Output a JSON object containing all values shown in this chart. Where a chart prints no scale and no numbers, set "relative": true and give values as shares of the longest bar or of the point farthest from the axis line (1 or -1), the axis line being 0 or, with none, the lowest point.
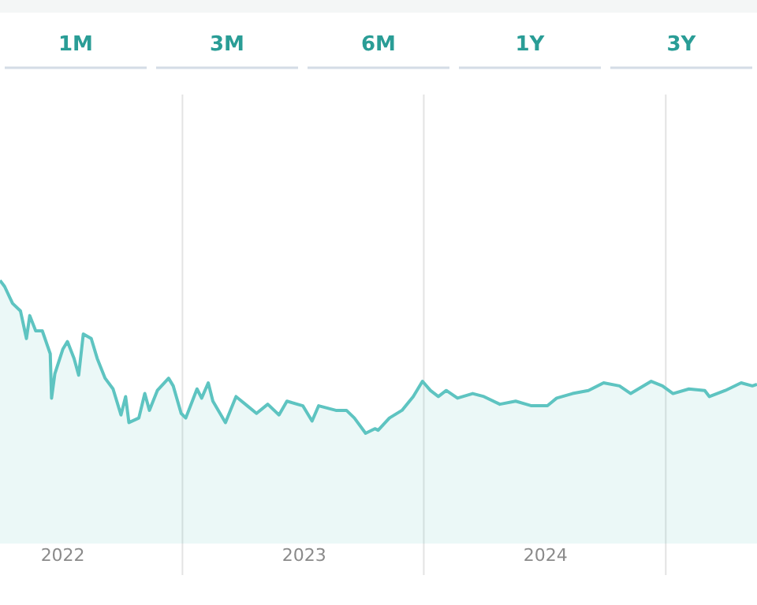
{
  "chart_data": {
    "type": "area",
    "relative": true,
    "color": "#5ec4c1",
    "grid": "x",
    "tick_labels": "x",
    "annotations": [
      "1M",
      "3M",
      "6M",
      "1Y",
      "3Y"
    ],
    "xlim": [
      "2021-09-28",
      "2024-11-16"
    ],
    "xticks": [
      {
        "value": "2022-01-01",
        "label": "2022"
      },
      {
        "value": "2022-07-01",
        "label": null
      },
      {
        "value": "2023-01-01",
        "label": "2023"
      },
      {
        "value": "2023-07-01",
        "label": null
      },
      {
        "value": "2024-01-01",
        "label": "2024"
      },
      {
        "value": "2024-07-01",
        "label": null
      }
    ],
    "x": [
      "2021-09-28",
      "2021-10-05",
      "2021-10-17",
      "2021-10-29",
      "2021-11-07",
      "2021-11-12",
      "2021-11-21",
      "2021-12-01",
      "2021-12-13",
      "2021-12-15",
      "2021-12-20",
      "2022-01-01",
      "2022-01-08",
      "2022-01-18",
      "2022-01-25",
      "2022-02-01",
      "2022-02-13",
      "2022-02-22",
      "2022-03-06",
      "2022-03-18",
      "2022-03-30",
      "2022-04-06",
      "2022-04-11",
      "2022-04-26",
      "2022-05-05",
      "2022-05-12",
      "2022-05-24",
      "2022-06-10",
      "2022-06-17",
      "2022-06-29",
      "2022-07-06",
      "2022-07-23",
      "2022-07-30",
      "2022-08-09",
      "2022-08-16",
      "2022-09-04",
      "2022-09-20",
      "2022-10-07",
      "2022-10-21",
      "2022-11-07",
      "2022-11-24",
      "2022-12-06",
      "2022-12-30",
      "2023-01-13",
      "2023-01-23",
      "2023-02-18",
      "2023-03-06",
      "2023-03-18",
      "2023-04-04",
      "2023-04-18",
      "2023-04-23",
      "2023-05-10",
      "2023-05-29",
      "2023-06-15",
      "2023-06-29",
      "2023-07-11",
      "2023-07-23",
      "2023-08-04",
      "2023-08-21",
      "2023-09-13",
      "2023-09-30",
      "2023-10-24",
      "2023-11-17",
      "2023-12-11",
      "2024-01-04",
      "2024-01-18",
      "2024-02-11",
      "2024-03-06",
      "2024-03-29",
      "2024-04-22",
      "2024-05-09",
      "2024-06-09",
      "2024-06-26",
      "2024-07-12",
      "2024-08-05",
      "2024-08-29",
      "2024-09-05",
      "2024-09-29",
      "2024-10-23",
      "2024-11-09",
      "2024-11-16"
    ],
    "values": [
      1.0,
      0.96,
      0.85,
      0.8,
      0.62,
      0.77,
      0.67,
      0.67,
      0.52,
      0.23,
      0.39,
      0.55,
      0.6,
      0.49,
      0.38,
      0.65,
      0.62,
      0.49,
      0.36,
      0.29,
      0.12,
      0.24,
      0.07,
      0.1,
      0.26,
      0.15,
      0.28,
      0.36,
      0.31,
      0.13,
      0.1,
      0.29,
      0.23,
      0.33,
      0.21,
      0.07,
      0.24,
      0.18,
      0.13,
      0.19,
      0.12,
      0.21,
      0.18,
      0.08,
      0.18,
      0.15,
      0.15,
      0.1,
      0.0,
      0.03,
      0.02,
      0.1,
      0.15,
      0.24,
      0.34,
      0.28,
      0.24,
      0.28,
      0.23,
      0.26,
      0.24,
      0.19,
      0.21,
      0.18,
      0.18,
      0.23,
      0.26,
      0.28,
      0.33,
      0.31,
      0.26,
      0.34,
      0.31,
      0.26,
      0.29,
      0.28,
      0.24,
      0.28,
      0.33,
      0.31,
      0.32
    ]
  }
}
